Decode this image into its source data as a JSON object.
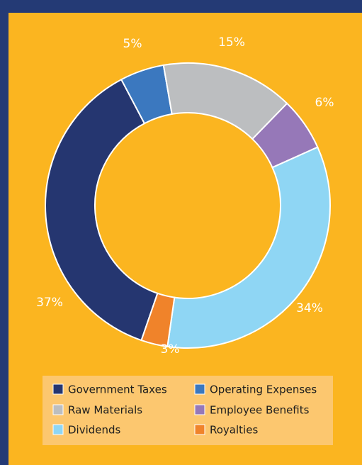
{
  "chart_data": {
    "type": "donut",
    "categories": [
      "Government Taxes",
      "Operating Expenses",
      "Raw Materials",
      "Employee Benefits",
      "Dividends",
      "Royalties"
    ],
    "values": [
      37,
      5,
      15,
      6,
      34,
      3
    ],
    "value_labels": [
      "37%",
      "5%",
      "15%",
      "6%",
      "34%",
      "3%"
    ],
    "colors": [
      "#253670",
      "#3b78bf",
      "#bcbec0",
      "#9678b8",
      "#8fd6f4",
      "#f0832a"
    ],
    "legend": "bottom"
  }
}
